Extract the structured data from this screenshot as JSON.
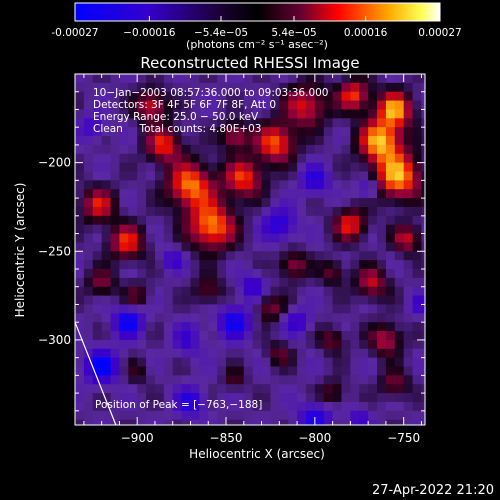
{
  "chart_data": {
    "type": "heatmap",
    "title": "Reconstructed RHESSI Image",
    "xlabel": "Heliocentric X (arcsec)",
    "ylabel": "Heliocentric Y (arcsec)",
    "xlim": [
      -935,
      -738
    ],
    "ylim": [
      -348,
      -150
    ],
    "x_ticks": [
      -900,
      -850,
      -800,
      -750
    ],
    "y_ticks": [
      -200,
      -250,
      -300
    ],
    "x_tick_labels": [
      "−900",
      "−850",
      "−800",
      "−750"
    ],
    "y_tick_labels": [
      "−200",
      "−250",
      "−300"
    ],
    "colorbar": {
      "range": [
        -0.00027,
        0.00027
      ],
      "ticks": [
        -0.00027,
        -0.00016,
        -5.4e-05,
        5.4e-05,
        0.00016,
        0.00027
      ],
      "tick_labels": [
        "-0.00027",
        "−0.00016",
        "−5.4e−05",
        "5.4e−05",
        "0.00016",
        "0.00027"
      ],
      "unit_label": "(photons cm⁻² s⁻¹ asec⁻²)"
    },
    "info_lines": [
      "10−Jan−2003 08:57:36.000 to 09:03:36.000",
      "Detectors: 3F 4F 5F 6F 7F 8F, Att 0",
      "Energy Range: 25.0 − 50.0 keV",
      "Clean     Total counts: 4.80E+03"
    ],
    "peak_label": "Position of Peak = [−763,−188]",
    "peak_position": [
      -763,
      -188
    ],
    "colors": [
      "#0000ff",
      "#000000",
      "#ff0000",
      "#ffff00",
      "#ffffff"
    ],
    "blobs": [
      {
        "x": -870,
        "y": -213,
        "r": 13,
        "v": 0.00024
      },
      {
        "x": -858,
        "y": -236,
        "r": 13,
        "v": 0.00025
      },
      {
        "x": -840,
        "y": -209,
        "r": 11,
        "v": 0.0002
      },
      {
        "x": -885,
        "y": -190,
        "r": 10,
        "v": 0.00019
      },
      {
        "x": -822,
        "y": -189,
        "r": 11,
        "v": 0.00022
      },
      {
        "x": -805,
        "y": -168,
        "r": 12,
        "v": 0.00018
      },
      {
        "x": -763,
        "y": -188,
        "r": 12,
        "v": 0.00027
      },
      {
        "x": -755,
        "y": -170,
        "r": 10,
        "v": 0.00025
      },
      {
        "x": -753,
        "y": -208,
        "r": 13,
        "v": 0.00026
      },
      {
        "x": -778,
        "y": -162,
        "r": 9,
        "v": 0.0002
      },
      {
        "x": -780,
        "y": -235,
        "r": 9,
        "v": 0.00019
      },
      {
        "x": -748,
        "y": -243,
        "r": 8,
        "v": 0.00016
      },
      {
        "x": -906,
        "y": -245,
        "r": 10,
        "v": 0.00019
      },
      {
        "x": -922,
        "y": -224,
        "r": 10,
        "v": 0.00017
      },
      {
        "x": -920,
        "y": -268,
        "r": 8,
        "v": 0.00012
      },
      {
        "x": -892,
        "y": -168,
        "r": 9,
        "v": 0.00018
      },
      {
        "x": -900,
        "y": -275,
        "r": 7,
        "v": 0.0001
      },
      {
        "x": -860,
        "y": -272,
        "r": 8,
        "v": 0.00011
      },
      {
        "x": -825,
        "y": -282,
        "r": 8,
        "v": 0.00012
      },
      {
        "x": -812,
        "y": -258,
        "r": 8,
        "v": 0.00014
      },
      {
        "x": -790,
        "y": -262,
        "r": 7,
        "v": 0.00011
      },
      {
        "x": -768,
        "y": -268,
        "r": 9,
        "v": 0.00016
      },
      {
        "x": -760,
        "y": -300,
        "r": 9,
        "v": 0.00016
      },
      {
        "x": -790,
        "y": -300,
        "r": 7,
        "v": 0.00012
      },
      {
        "x": -820,
        "y": -308,
        "r": 7,
        "v": 0.0001
      },
      {
        "x": -755,
        "y": -325,
        "r": 8,
        "v": 0.00012
      },
      {
        "x": -790,
        "y": -330,
        "r": 7,
        "v": 0.00011
      },
      {
        "x": -845,
        "y": -322,
        "r": 6,
        "v": 9e-05
      },
      {
        "x": -845,
        "y": -185,
        "r": 8,
        "v": 0.00016
      },
      {
        "x": -868,
        "y": -300,
        "r": 6,
        "v": 8e-05
      },
      {
        "x": -900,
        "y": -318,
        "r": 7,
        "v": 7e-05
      },
      {
        "x": -920,
        "y": -315,
        "r": 9,
        "v": -0.00022
      },
      {
        "x": -905,
        "y": -290,
        "r": 8,
        "v": -0.0002
      },
      {
        "x": -870,
        "y": -300,
        "r": 8,
        "v": -0.00016
      },
      {
        "x": -845,
        "y": -290,
        "r": 9,
        "v": -0.00018
      },
      {
        "x": -820,
        "y": -235,
        "r": 9,
        "v": -0.00015
      },
      {
        "x": -800,
        "y": -210,
        "r": 8,
        "v": -0.00014
      },
      {
        "x": -835,
        "y": -270,
        "r": 7,
        "v": -0.00013
      },
      {
        "x": -870,
        "y": -335,
        "r": 8,
        "v": -0.00015
      },
      {
        "x": -800,
        "y": -345,
        "r": 9,
        "v": -0.00016
      },
      {
        "x": -810,
        "y": -290,
        "r": 7,
        "v": -0.00012
      },
      {
        "x": -775,
        "y": -345,
        "r": 6,
        "v": -0.00011
      },
      {
        "x": -770,
        "y": -215,
        "r": 6,
        "v": -0.0001
      },
      {
        "x": -925,
        "y": -180,
        "r": 7,
        "v": -0.0001
      },
      {
        "x": -880,
        "y": -255,
        "r": 6,
        "v": -0.00011
      },
      {
        "x": -740,
        "y": -280,
        "r": 6,
        "v": -0.0001
      }
    ],
    "limb_line": [
      [
        -935,
        -290
      ],
      [
        -912,
        -348
      ]
    ]
  },
  "timestamp": "27-Apr-2022 21:20"
}
